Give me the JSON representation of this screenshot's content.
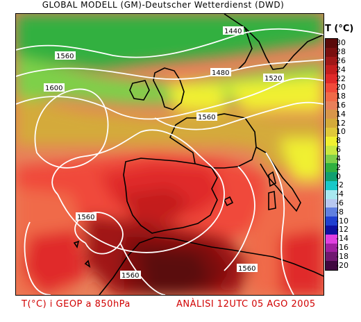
{
  "header": {
    "title": "GLOBAL MODELL (GM)-Deutscher Wetterdienst (DWD)"
  },
  "footer": {
    "left": "T(°C) i GEOP a 850hPa",
    "right": "ANÀLISI 12UTC 05 AGO 2005"
  },
  "legend": {
    "title": "T (°C)",
    "stops": [
      {
        "label": "30",
        "color": "#5a0a0a"
      },
      {
        "label": "28",
        "color": "#7a1010"
      },
      {
        "label": "26",
        "color": "#a01818"
      },
      {
        "label": "24",
        "color": "#c41e1e"
      },
      {
        "label": "22",
        "color": "#e02a2a"
      },
      {
        "label": "20",
        "color": "#f04a3a"
      },
      {
        "label": "18",
        "color": "#f06a48"
      },
      {
        "label": "16",
        "color": "#e8805a"
      },
      {
        "label": "14",
        "color": "#d8964a"
      },
      {
        "label": "12",
        "color": "#d4aa3a"
      },
      {
        "label": "10",
        "color": "#e0c83a"
      },
      {
        "label": "8",
        "color": "#f0f030"
      },
      {
        "label": "6",
        "color": "#c8e840"
      },
      {
        "label": "4",
        "color": "#7ed04a"
      },
      {
        "label": "2",
        "color": "#30b040"
      },
      {
        "label": "0",
        "color": "#10a070"
      },
      {
        "label": "-2",
        "color": "#18c8c8"
      },
      {
        "label": "-4",
        "color": "#a8e8f0"
      },
      {
        "label": "-6",
        "color": "#b8c8f0"
      },
      {
        "label": "-8",
        "color": "#6080e0"
      },
      {
        "label": "-10",
        "color": "#2040d0"
      },
      {
        "label": "-12",
        "color": "#1010a0"
      },
      {
        "label": "-14",
        "color": "#e040e0"
      },
      {
        "label": "-16",
        "color": "#a020a0"
      },
      {
        "label": "-18",
        "color": "#701870"
      },
      {
        "label": "-20",
        "color": "#400840"
      }
    ]
  },
  "contours": {
    "c1440": "1440",
    "c1480": "1480",
    "c1520": "1520",
    "c1560_a": "1560",
    "c1560_b": "1560",
    "c1560_c": "1560",
    "c1560_d": "1560",
    "c1560_e": "1560",
    "c1600": "1600"
  }
}
